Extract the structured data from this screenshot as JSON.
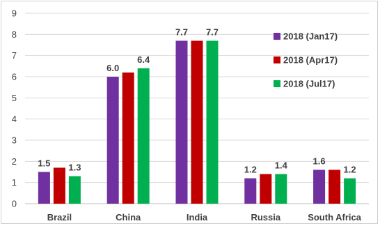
{
  "chart_data": {
    "type": "bar",
    "title": "",
    "xlabel": "",
    "ylabel": "",
    "ylim": [
      0,
      9
    ],
    "yticks": [
      "0",
      "1",
      "2",
      "3",
      "4",
      "5",
      "6",
      "7",
      "8",
      "9"
    ],
    "grid": true,
    "legend_position": "top-right",
    "categories": [
      "Brazil",
      "China",
      "India",
      "Russia",
      "South Africa"
    ],
    "series": [
      {
        "name": "2018 (Jan17)",
        "color": "#7030a0",
        "values": [
          1.5,
          6.0,
          7.7,
          1.2,
          1.6
        ]
      },
      {
        "name": "2018 (Apr17)",
        "color": "#c00000",
        "values": [
          1.7,
          6.2,
          7.7,
          1.4,
          1.6
        ]
      },
      {
        "name": "2018 (Jul17)",
        "color": "#00b050",
        "values": [
          1.3,
          6.4,
          7.7,
          1.4,
          1.2
        ]
      }
    ],
    "data_labels": [
      {
        "category": "Brazil",
        "series": 0,
        "text": "1.5"
      },
      {
        "category": "Brazil",
        "series": 2,
        "text": "1.3"
      },
      {
        "category": "China",
        "series": 0,
        "text": "6.0"
      },
      {
        "category": "China",
        "series": 2,
        "text": "6.4"
      },
      {
        "category": "India",
        "series": 0,
        "text": "7.7"
      },
      {
        "category": "India",
        "series": 2,
        "text": "7.7"
      },
      {
        "category": "Russia",
        "series": 0,
        "text": "1.2"
      },
      {
        "category": "Russia",
        "series": 2,
        "text": "1.4"
      },
      {
        "category": "South Africa",
        "series": 0,
        "text": "1.6"
      },
      {
        "category": "South Africa",
        "series": 2,
        "text": "1.2"
      }
    ]
  }
}
